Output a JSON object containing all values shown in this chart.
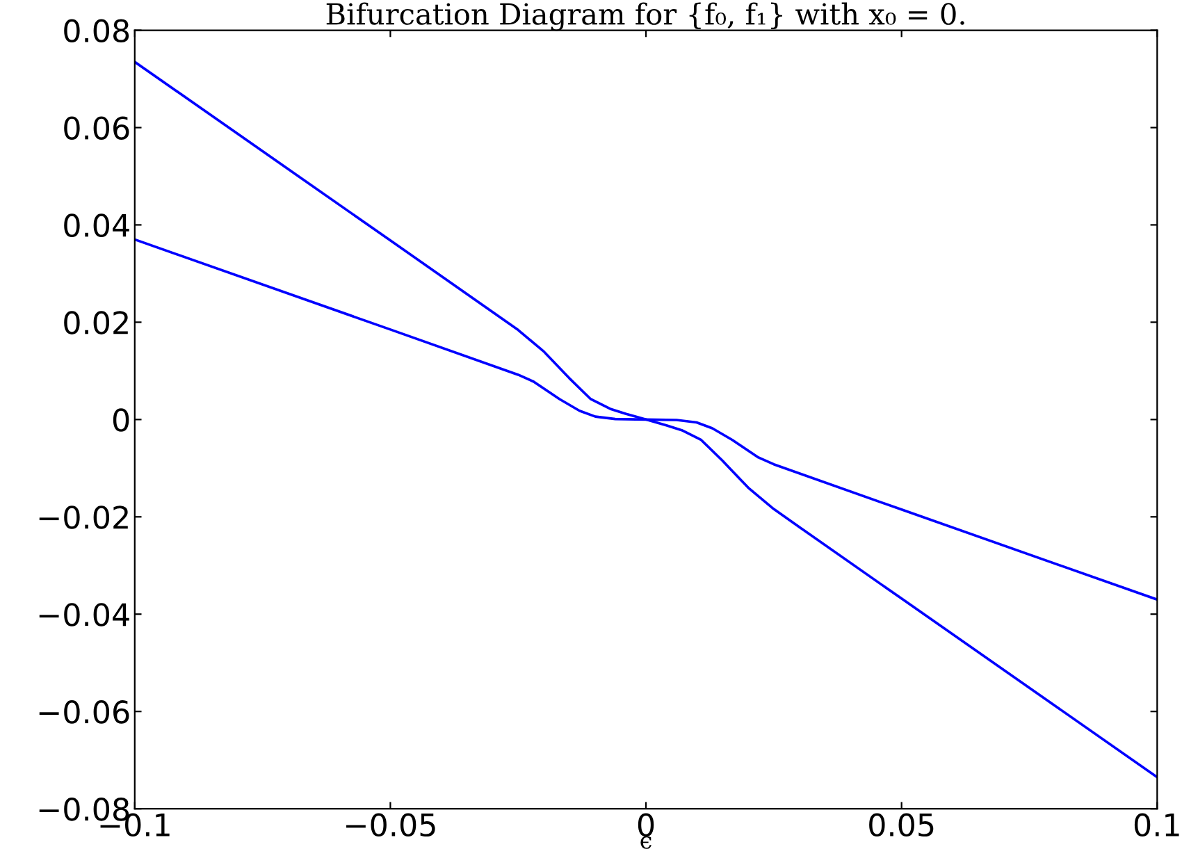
{
  "chart_data": {
    "type": "line",
    "title": "Bifurcation Diagram for {f₀, f₁} with x₀ = 0.",
    "xlabel": "ϵ",
    "series": [
      {
        "color": "#0000ff",
        "x": [
          -0.1,
          -0.05,
          -0.03,
          -0.025,
          -0.02,
          -0.0169,
          -0.015,
          -0.0108,
          -0.007,
          -0.004,
          0,
          0.004,
          0.007,
          0.0108,
          0.015,
          0.0169,
          0.02,
          0.025,
          0.03,
          0.05,
          0.1
        ],
        "values": [
          0.0735,
          0.0368,
          0.0221,
          0.0184,
          0.014,
          0.0106,
          0.0085,
          0.0042,
          0.0022,
          0.0012,
          0,
          -0.0012,
          -0.0022,
          -0.0042,
          -0.0085,
          -0.0106,
          -0.014,
          -0.0184,
          -0.0221,
          -0.0368,
          -0.0735
        ]
      },
      {
        "color": "#0000ff",
        "x": [
          -0.1,
          -0.05,
          -0.025,
          -0.022,
          -0.0169,
          -0.013,
          -0.0099,
          -0.006,
          0,
          0.006,
          0.0099,
          0.013,
          0.0169,
          0.022,
          0.025,
          0.05,
          0.1
        ],
        "values": [
          0.037,
          0.0185,
          0.0092,
          0.0078,
          0.0042,
          0.0018,
          0.0006,
          0.0001,
          0,
          -0.0001,
          -0.0006,
          -0.0018,
          -0.0042,
          -0.0078,
          -0.0092,
          -0.0185,
          -0.037
        ]
      }
    ],
    "xlim": [
      -0.1,
      0.1
    ],
    "xticks": [
      {
        "value": -0.1,
        "label": "−0.1"
      },
      {
        "value": -0.05,
        "label": "−0.05"
      },
      0,
      0.05,
      0.1
    ],
    "ylim": [
      -0.08,
      0.08
    ],
    "yticks": [
      {
        "value": -0.08,
        "label": "−0.08"
      },
      {
        "value": -0.06,
        "label": "−0.06"
      },
      {
        "value": -0.04,
        "label": "−0.04"
      },
      {
        "value": -0.02,
        "label": "−0.02"
      },
      0,
      0.02,
      0.04,
      0.06,
      0.08
    ],
    "grid": false,
    "legend": false,
    "marker": "none",
    "line_style": "solid"
  }
}
